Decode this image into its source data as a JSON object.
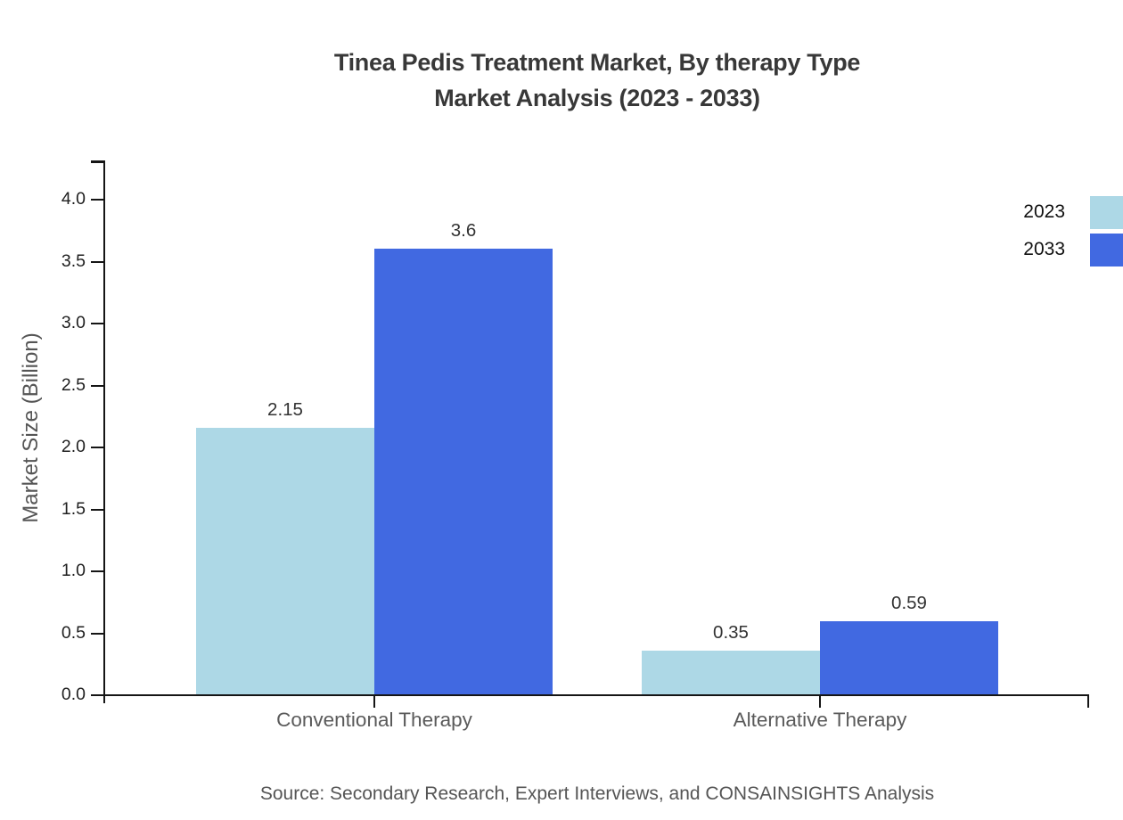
{
  "title": {
    "line1": "Tinea Pedis Treatment Market, By therapy Type",
    "line2": "Market Analysis (2023 - 2033)"
  },
  "source": "Source: Secondary Research, Expert Interviews, and CONSAINSIGHTS Analysis",
  "chart_data": {
    "type": "bar",
    "title": "Tinea Pedis Treatment Market, By therapy Type Market Analysis (2023 - 2033)",
    "categories": [
      "Conventional Therapy",
      "Alternative Therapy"
    ],
    "series": [
      {
        "name": "2023",
        "color": "#ADD8E6",
        "values": [
          2.15,
          0.35
        ]
      },
      {
        "name": "2033",
        "color": "#4169E1",
        "values": [
          3.6,
          0.59
        ]
      }
    ],
    "xlabel": "",
    "ylabel": "Market Size (Billion)",
    "ylim": [
      0,
      4.0
    ],
    "ytick_step": 0.5,
    "grid": false,
    "legend_position": "top-right",
    "bar_value_labels": true,
    "axis_color": "#151515",
    "value_label_color": "#333333",
    "ytick_label_color": "#1f1f1f",
    "category_label_color": "#5a5a5a"
  }
}
